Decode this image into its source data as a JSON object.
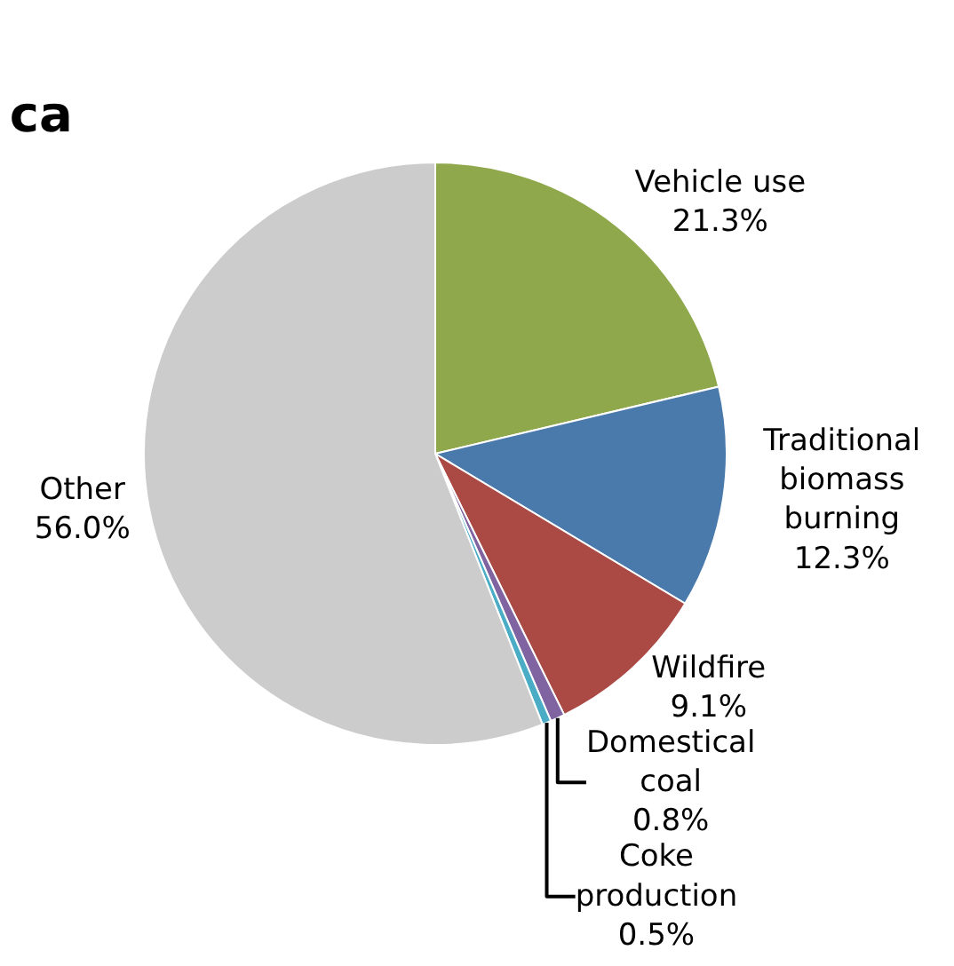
{
  "chart_data": {
    "type": "pie",
    "title": "ca",
    "categories": [
      "Vehicle use",
      "Traditional biomass burning",
      "Wildfire",
      "Domestical coal",
      "Coke production",
      "Other"
    ],
    "values": [
      21.3,
      12.3,
      9.1,
      0.8,
      0.5,
      56.0
    ],
    "value_labels": [
      "21.3%",
      "12.3%",
      "9.1%",
      "0.8%",
      "0.5%",
      "56.0%"
    ],
    "colors": [
      "#8fa84c",
      "#4a7aab",
      "#ab4a45",
      "#8064a2",
      "#4bacc6",
      "#cccccc"
    ],
    "legend": false
  }
}
